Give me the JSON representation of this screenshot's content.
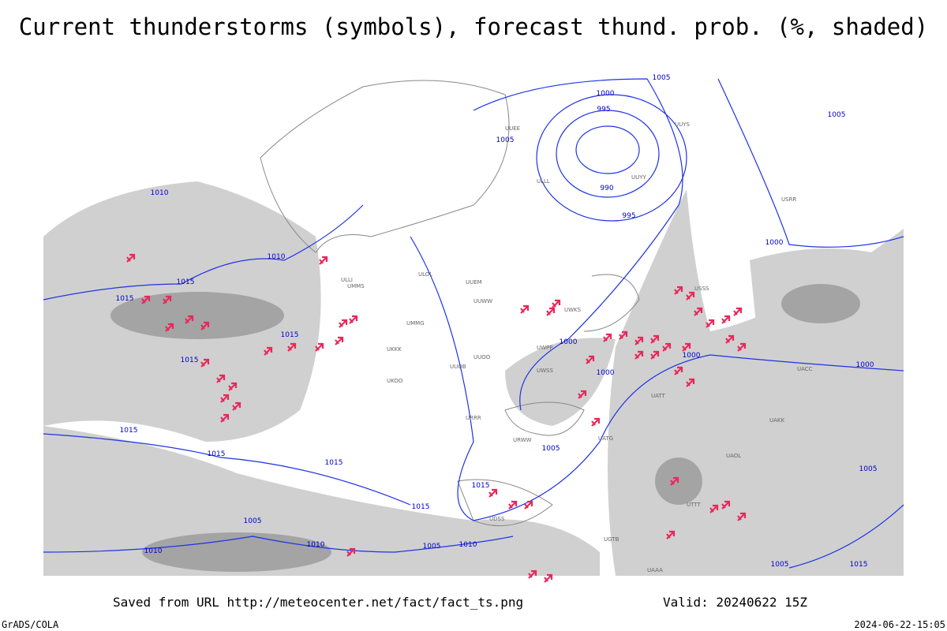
{
  "header": {
    "title": "Current thunderstorms (symbols), forecast thund. prob. (%, shaded)"
  },
  "isobar_labels": [
    "1005",
    "1000",
    "995",
    "990",
    "995",
    "1000",
    "1010",
    "1015",
    "1015",
    "1015",
    "1015",
    "1000",
    "1000",
    "1000",
    "1000",
    "1015",
    "1015",
    "1015",
    "1005",
    "1015",
    "1015",
    "1005",
    "1010",
    "1005",
    "1010",
    "1010",
    "1005",
    "1015",
    "1005",
    "1010",
    "1005",
    "1005"
  ],
  "stations": [
    "ULLI",
    "ULOL",
    "UMMS",
    "UUEM",
    "UUWW",
    "UUEE",
    "ULLL",
    "UMMG",
    "UUOO",
    "UKKK",
    "UKOO",
    "URRR",
    "URWW",
    "UUYY",
    "UUYS",
    "USRR",
    "USSS",
    "UATT",
    "UACC",
    "UAKK",
    "UTTT",
    "UATG",
    "UUOB",
    "UWKS",
    "UWPP",
    "UWSS",
    "UDSS",
    "UGTB",
    "UAAA",
    "UAOL"
  ],
  "footer": {
    "saved_from": "Saved from URL http://meteocenter.net/fact/fact_ts.png",
    "valid": "Valid: 20240622 15Z",
    "software": "GrADS/COLA",
    "timestamp": "2024-06-22-15:05"
  }
}
